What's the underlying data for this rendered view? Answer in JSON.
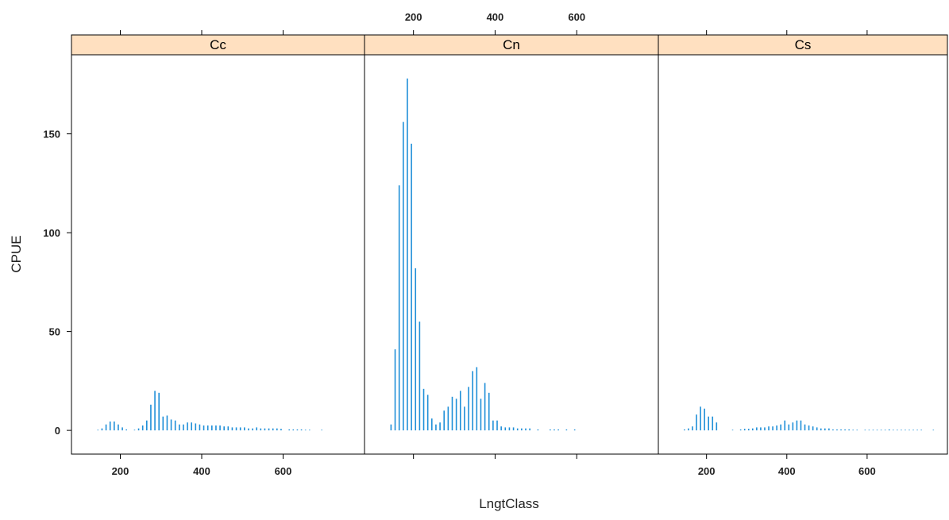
{
  "chart_data": {
    "type": "bar",
    "subtype": "lattice-histogram-spikes",
    "xlabel": "LngtClass",
    "ylabel": "CPUE",
    "xlim": [
      80,
      800
    ],
    "ylim": [
      -12,
      190
    ],
    "x_ticks": [
      200,
      400,
      600
    ],
    "y_ticks": [
      0,
      50,
      100,
      150
    ],
    "grid": false,
    "colors": {
      "bar": "#1f8fd8",
      "strip": "#ffe0c0",
      "axis": "#000000"
    },
    "panels": [
      {
        "name": "Cc",
        "x": [
          145,
          155,
          165,
          175,
          185,
          195,
          205,
          215,
          235,
          245,
          255,
          265,
          275,
          285,
          295,
          305,
          315,
          325,
          335,
          345,
          355,
          365,
          375,
          385,
          395,
          405,
          415,
          425,
          435,
          445,
          455,
          465,
          475,
          485,
          495,
          505,
          515,
          525,
          535,
          545,
          555,
          565,
          575,
          585,
          595,
          615,
          625,
          635,
          645,
          655,
          665,
          695
        ],
        "values": [
          0.3,
          1,
          3,
          4.5,
          4.5,
          3,
          1.5,
          0.5,
          0.3,
          1,
          2.5,
          5,
          13,
          20,
          19,
          7,
          7.5,
          5.5,
          5,
          3,
          3,
          4,
          4,
          3.5,
          3,
          2.5,
          2.5,
          2.5,
          2.5,
          2.5,
          2,
          2,
          1.5,
          1.5,
          1.5,
          1.5,
          1,
          1,
          1.5,
          1,
          1,
          1,
          1,
          1,
          0.8,
          0.5,
          0.5,
          0.5,
          0.5,
          0.3,
          0.3,
          0.3
        ]
      },
      {
        "name": "Cn",
        "x": [
          145,
          155,
          165,
          175,
          185,
          195,
          205,
          215,
          225,
          235,
          245,
          255,
          265,
          275,
          285,
          295,
          305,
          315,
          325,
          335,
          345,
          355,
          365,
          375,
          385,
          395,
          405,
          415,
          425,
          435,
          445,
          455,
          465,
          475,
          485,
          505,
          535,
          545,
          555,
          575,
          595
        ],
        "values": [
          3,
          41,
          124,
          156,
          178,
          145,
          82,
          55,
          21,
          18,
          6,
          3,
          4,
          10,
          12,
          17,
          16,
          20,
          12,
          22,
          30,
          32,
          16,
          24,
          19,
          5,
          5,
          2,
          1.5,
          1.5,
          1.5,
          1,
          1,
          1,
          1,
          0.5,
          0.5,
          0.5,
          0.5,
          0.5,
          0.5
        ]
      },
      {
        "name": "Cs",
        "x": [
          145,
          155,
          165,
          175,
          185,
          195,
          205,
          215,
          225,
          265,
          285,
          295,
          305,
          315,
          325,
          335,
          345,
          355,
          365,
          375,
          385,
          395,
          405,
          415,
          425,
          435,
          445,
          455,
          465,
          475,
          485,
          495,
          505,
          515,
          525,
          535,
          545,
          555,
          565,
          575,
          595,
          605,
          615,
          625,
          635,
          645,
          655,
          665,
          675,
          685,
          695,
          705,
          715,
          725,
          735,
          765
        ],
        "values": [
          0.5,
          1,
          2,
          8,
          12,
          11,
          7,
          7,
          4,
          0.3,
          0.5,
          0.8,
          0.8,
          1,
          1.5,
          1.5,
          1.5,
          2,
          2,
          2.5,
          3,
          5,
          3,
          4,
          5,
          5,
          3,
          2.5,
          2,
          1.5,
          1,
          1,
          1,
          0.5,
          0.5,
          0.5,
          0.5,
          0.5,
          0.3,
          0.3,
          0.3,
          0.3,
          0.3,
          0.3,
          0.3,
          0.3,
          0.5,
          0.3,
          0.3,
          0.3,
          0.3,
          0.3,
          0.3,
          0.3,
          0.3,
          0.3
        ]
      }
    ]
  }
}
